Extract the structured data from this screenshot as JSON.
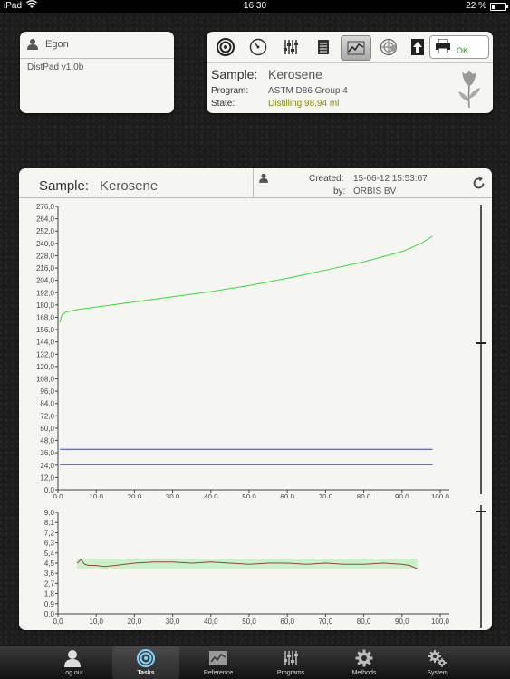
{
  "status_bar": {
    "device": "iPad",
    "time": "16:30",
    "battery": "22 %",
    "battery_fraction": 0.22
  },
  "user_panel": {
    "user_name": "Egon",
    "app_version": "DistPad v1.0b"
  },
  "toolbar": {
    "items": [
      "target-icon",
      "gauge-icon",
      "sliders-icon",
      "notepad-icon",
      "chart-icon",
      "radar-icon",
      "upload-icon",
      "printer-icon"
    ],
    "active": "chart-icon",
    "ok_label": "OK"
  },
  "status": {
    "sample_label": "Sample:",
    "sample_value": "Kerosene",
    "program_label": "Program:",
    "program_value": "ASTM D86 Group 4",
    "state_label": "State:",
    "state_value": "Distilling 98.94 ml"
  },
  "chart_header": {
    "sample_label": "Sample:",
    "sample_value": "Kerosene",
    "created_label": "Created:",
    "created_value": "15-06-12 15:53:07",
    "by_label": "by:",
    "by_value": "ORBIS BV"
  },
  "chart_data": [
    {
      "type": "line",
      "x_ticks": [
        "0,0",
        "10,0",
        "20,0",
        "30,0",
        "40,0",
        "50,0",
        "60,0",
        "70,0",
        "80,0",
        "90,0",
        "100,0"
      ],
      "y_ticks": [
        "0,0",
        "12,0",
        "24,0",
        "36,0",
        "48,0",
        "60,0",
        "72,0",
        "84,0",
        "96,0",
        "108,0",
        "120,0",
        "132,0",
        "144,0",
        "156,0",
        "168,0",
        "180,0",
        "192,0",
        "204,0",
        "216,0",
        "228,0",
        "240,0",
        "252,0",
        "264,0",
        "276,0"
      ],
      "xlim": [
        0,
        100
      ],
      "ylim": [
        0,
        276
      ],
      "series": [
        {
          "color": "#33dd33",
          "x": [
            0.5,
            1,
            2,
            5,
            10,
            20,
            30,
            40,
            50,
            60,
            70,
            80,
            90,
            95,
            98
          ],
          "y": [
            163,
            170,
            173,
            175.5,
            178,
            183,
            188,
            193,
            199,
            206,
            214,
            222,
            232,
            240,
            247
          ]
        },
        {
          "color": "#3344aa",
          "x": [
            0.5,
            98
          ],
          "y": [
            39.5,
            39.5
          ]
        },
        {
          "color": "#3344aa",
          "x": [
            0.5,
            98
          ],
          "y": [
            24.5,
            24.5
          ]
        }
      ]
    },
    {
      "type": "line",
      "x_ticks": [
        "0,0",
        "10,0",
        "20,0",
        "30,0",
        "40,0",
        "50,0",
        "60,0",
        "70,0",
        "80,0",
        "90,0",
        "100,0"
      ],
      "y_ticks": [
        "0,0",
        "0,9",
        "1,8",
        "2,7",
        "3,6",
        "4,5",
        "5,4",
        "6,3",
        "7,2",
        "8,1",
        "9,0"
      ],
      "xlim": [
        0,
        100
      ],
      "ylim": [
        0,
        9
      ],
      "band": {
        "x": [
          5,
          94
        ],
        "y": [
          4.0,
          4.9
        ],
        "color": "#c9f2c9"
      },
      "series": [
        {
          "color": "#a04040",
          "x": [
            5,
            6,
            7,
            8,
            10,
            12,
            15,
            20,
            25,
            30,
            35,
            40,
            45,
            50,
            55,
            60,
            65,
            70,
            75,
            80,
            85,
            90,
            92,
            94
          ],
          "y": [
            4.5,
            4.8,
            4.4,
            4.3,
            4.3,
            4.2,
            4.3,
            4.5,
            4.6,
            4.6,
            4.5,
            4.6,
            4.5,
            4.4,
            4.5,
            4.5,
            4.4,
            4.5,
            4.4,
            4.4,
            4.5,
            4.4,
            4.3,
            4.0
          ]
        }
      ]
    }
  ],
  "tab_bar": {
    "tabs": [
      {
        "label": "Log out",
        "icon": "person-icon"
      },
      {
        "label": "Tasks",
        "icon": "target-icon",
        "active": true
      },
      {
        "label": "Reference",
        "icon": "chart-icon"
      },
      {
        "label": "Programs",
        "icon": "sliders-icon"
      },
      {
        "label": "Methods",
        "icon": "gear-icon"
      },
      {
        "label": "System",
        "icon": "gears-icon"
      }
    ]
  }
}
